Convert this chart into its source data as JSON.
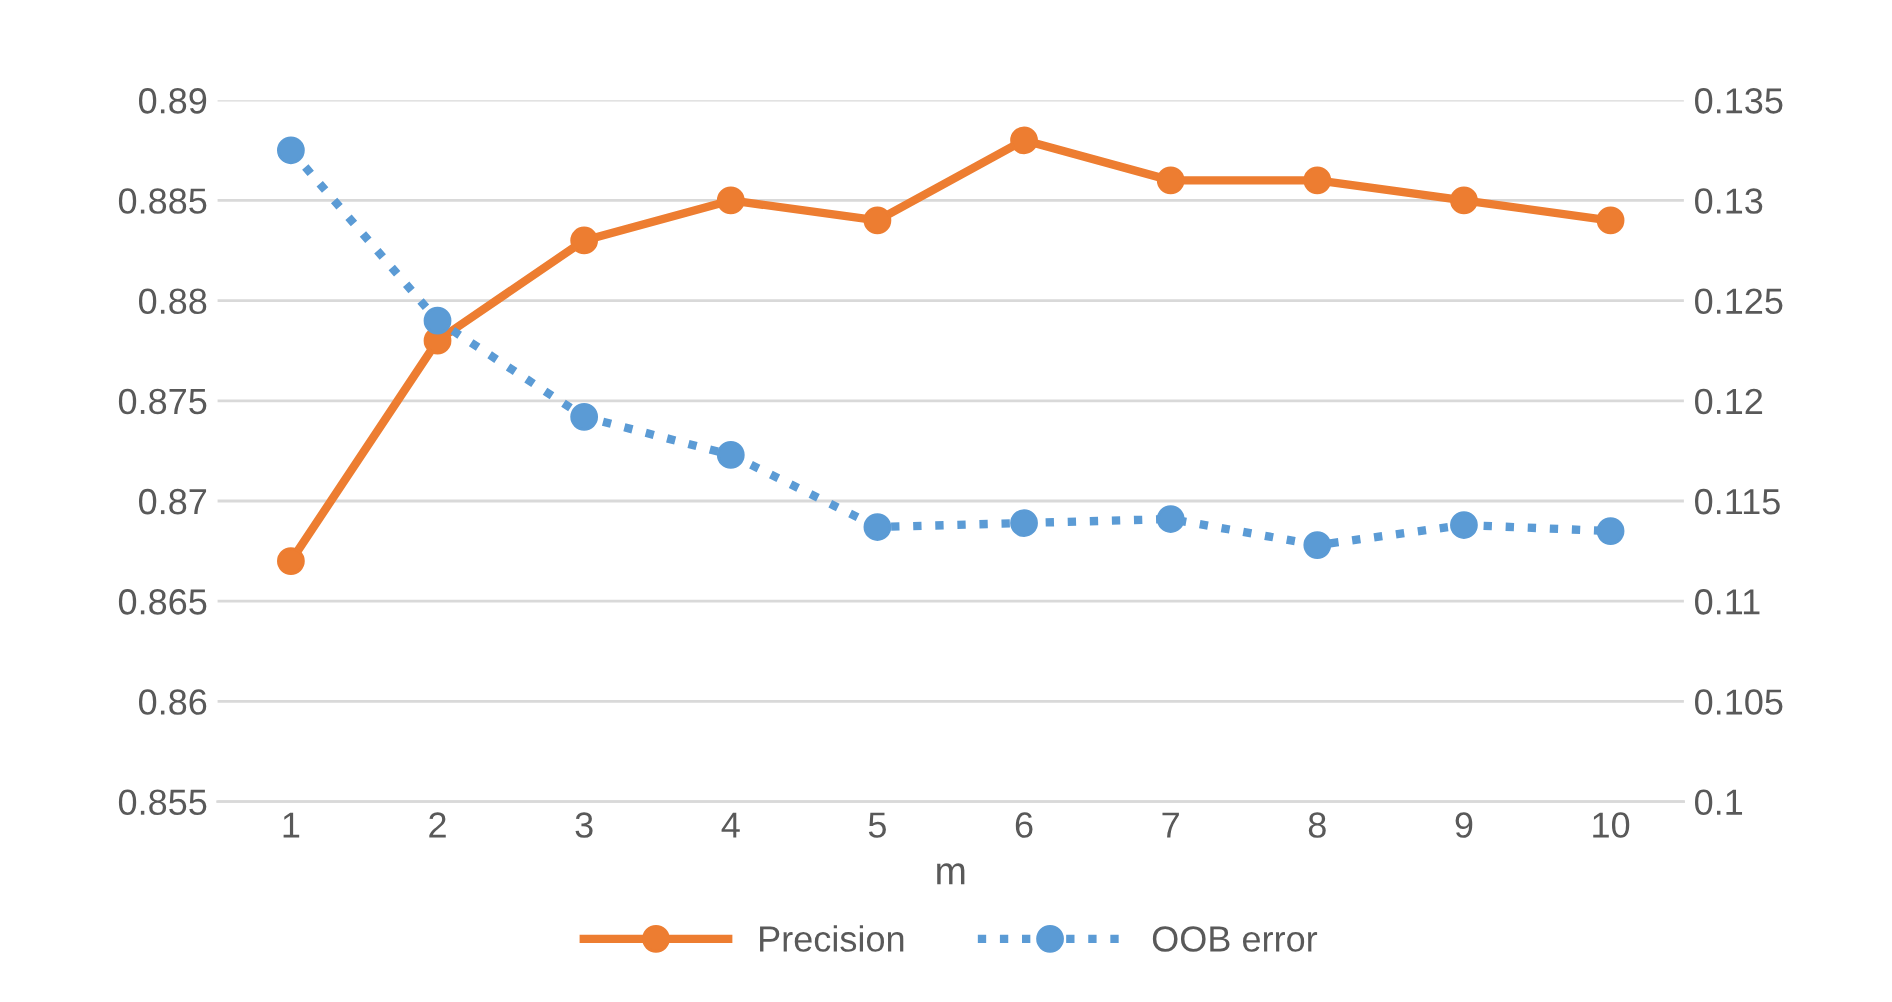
{
  "chart_data": {
    "type": "line",
    "xlabel": "m",
    "categories": [
      "1",
      "2",
      "3",
      "4",
      "5",
      "6",
      "7",
      "8",
      "9",
      "10"
    ],
    "series": [
      {
        "name": "Precision",
        "color": "#ed7d31",
        "line_style": "solid",
        "values": [
          0.867,
          0.878,
          0.883,
          0.885,
          0.884,
          0.888,
          0.886,
          0.886,
          0.885,
          0.884
        ]
      },
      {
        "name": "OOB error",
        "color": "#5b9bd5",
        "line_style": "dotted",
        "axis": "y2",
        "values": [
          0.1325,
          0.124,
          0.1192,
          0.1173,
          0.1137,
          0.1139,
          0.1141,
          0.1128,
          0.1138,
          0.1135
        ]
      }
    ],
    "ylim": [
      0.855,
      0.89
    ],
    "yticks": [
      0.855,
      0.86,
      0.865,
      0.87,
      0.875,
      0.88,
      0.885,
      0.89
    ],
    "y2lim": [
      0.1,
      0.135
    ],
    "y2ticks": [
      0.1,
      0.105,
      0.11,
      0.115,
      0.12,
      0.125,
      0.13,
      0.135
    ],
    "grid": "y",
    "legend": "bottom",
    "marker": "circle"
  }
}
